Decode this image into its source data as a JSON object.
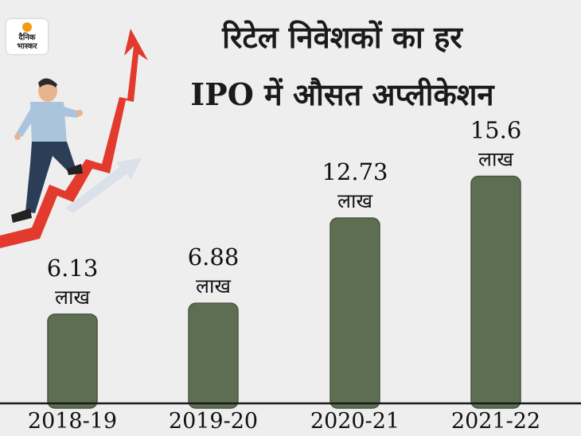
{
  "brand": {
    "logo_line1": "दैनिक",
    "logo_line2": "भास्कर"
  },
  "chart_data": {
    "type": "bar",
    "title_line1": "रिटेल निवेशकों का हर",
    "title_line2": "IPO में औसत अप्लीकेशन",
    "categories": [
      "2018-19",
      "2019-20",
      "2020-21",
      "2021-22"
    ],
    "values": [
      6.13,
      6.88,
      12.73,
      15.6
    ],
    "value_labels": [
      "6.13",
      "6.88",
      "12.73",
      "15.6"
    ],
    "unit": "लाख",
    "xlabel": "",
    "ylabel": "",
    "grid": false,
    "colors": {
      "bar": "#5e6e52",
      "bar_edge": "#48573f",
      "axis": "#1a1a1a",
      "arrow": "#e23b2e"
    }
  }
}
